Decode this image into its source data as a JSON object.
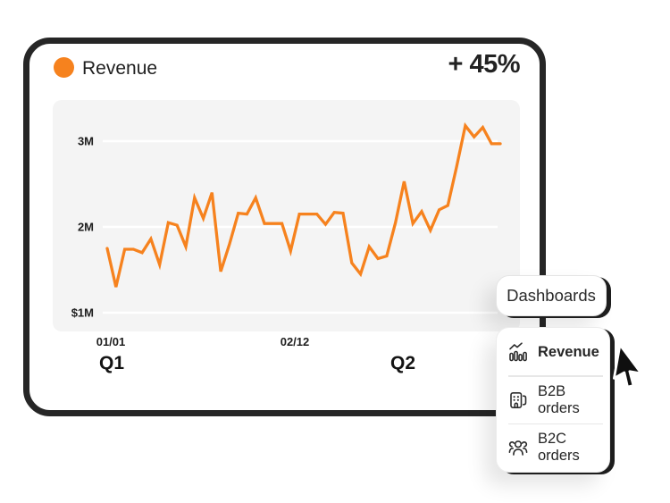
{
  "card": {
    "title": "Revenue",
    "delta": "+ 45%",
    "accent_color": "#F6821E"
  },
  "chart_data": {
    "type": "line",
    "title": "Revenue",
    "series": [
      {
        "name": "Revenue",
        "color": "#F6821E",
        "values_millions": [
          1.75,
          1.3,
          1.74,
          1.74,
          1.7,
          1.86,
          1.56,
          2.05,
          2.02,
          1.77,
          2.34,
          2.1,
          2.4,
          1.48,
          1.8,
          2.16,
          2.15,
          2.34,
          2.04,
          2.04,
          2.04,
          1.72,
          2.15,
          2.15,
          2.15,
          2.03,
          2.17,
          2.16,
          1.58,
          1.45,
          1.77,
          1.63,
          1.66,
          2.05,
          2.53,
          2.04,
          2.18,
          1.96,
          2.2,
          2.25,
          2.7,
          3.18,
          3.05,
          3.16,
          2.97,
          2.97
        ]
      }
    ],
    "ylim": [
      1,
      3.3
    ],
    "ylabel": "",
    "xlabel": "",
    "y_ticks": [
      {
        "value": 1,
        "label": "$1M"
      },
      {
        "value": 2,
        "label": "2M"
      },
      {
        "value": 3,
        "label": "3M"
      }
    ],
    "x_ticks": [
      "01/01",
      "02/12"
    ],
    "quarters": [
      "Q1",
      "Q2"
    ],
    "grid": "horizontal-only",
    "legend": "none",
    "background": "#f4f4f4",
    "gridline_color": "#ffffff"
  },
  "menu_button": {
    "label": "Dashboards"
  },
  "menu": {
    "items": [
      {
        "label": "Revenue",
        "icon": "bar-line-chart-icon",
        "active": true
      },
      {
        "label": "B2B orders",
        "icon": "building-icon",
        "active": false
      },
      {
        "label": "B2C orders",
        "icon": "people-group-icon",
        "active": false
      }
    ]
  },
  "cursor": {
    "icon": "mouse-pointer-icon"
  }
}
